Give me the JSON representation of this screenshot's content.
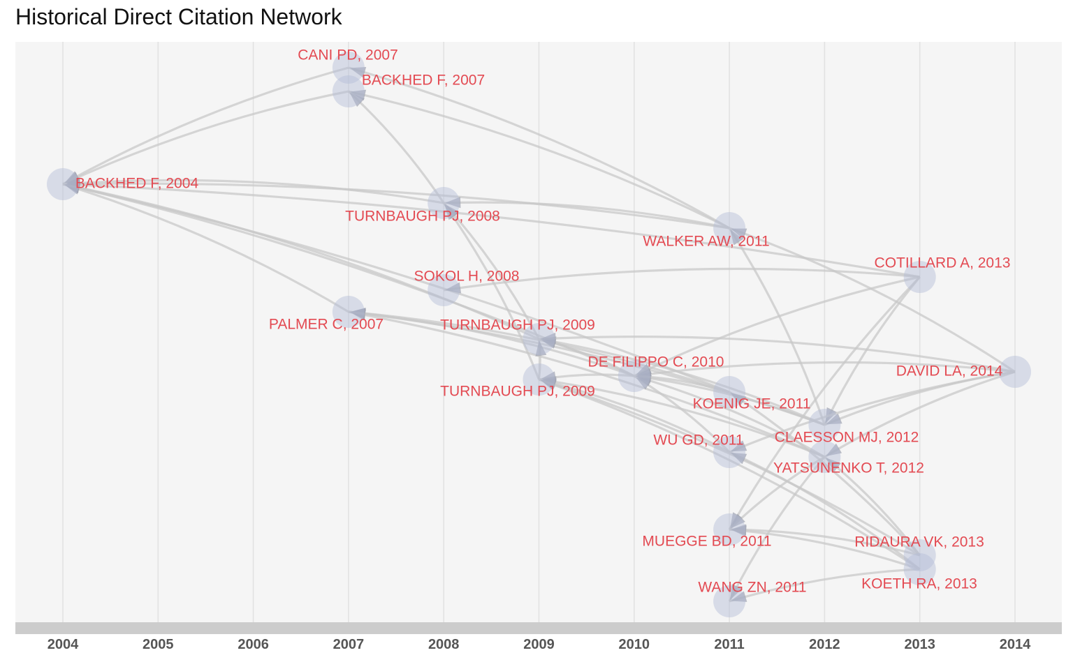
{
  "chart_data": {
    "type": "network",
    "title": "Historical Direct Citation Network",
    "xlabel": "",
    "ylabel": "",
    "x_ticks": [
      2004,
      2005,
      2006,
      2007,
      2008,
      2009,
      2010,
      2011,
      2012,
      2013,
      2014
    ],
    "xlim": [
      2004,
      2014
    ],
    "colors": {
      "background": "#f5f5f5",
      "grid": "#e2e2e2",
      "axis_band": "#cccccc",
      "node_fill": "#b3bcd8",
      "edge": "#c8c8c8",
      "arrow": "#9ea3b0",
      "label": "#e34a52",
      "tick_label": "#555555"
    },
    "nodes": [
      {
        "id": "cani2007",
        "label": "CANI PD, 2007",
        "year": 2007
      },
      {
        "id": "backhed2007",
        "label": "BACKHED F, 2007",
        "year": 2007
      },
      {
        "id": "backhed2004",
        "label": "BACKHED F, 2004",
        "year": 2004
      },
      {
        "id": "turnbaugh2008",
        "label": "TURNBAUGH PJ, 2008",
        "year": 2008
      },
      {
        "id": "walker2011",
        "label": "WALKER AW, 2011",
        "year": 2011
      },
      {
        "id": "cotillard2013",
        "label": "COTILLARD A, 2013",
        "year": 2013
      },
      {
        "id": "sokol2008",
        "label": "SOKOL H, 2008",
        "year": 2008
      },
      {
        "id": "palmer2007",
        "label": "PALMER C, 2007",
        "year": 2007
      },
      {
        "id": "turnbaugh2009a",
        "label": "TURNBAUGH PJ, 2009",
        "year": 2009
      },
      {
        "id": "defilippo2010",
        "label": "DE FILIPPO C, 2010",
        "year": 2010
      },
      {
        "id": "davidla2014",
        "label": "DAVID LA, 2014",
        "year": 2014
      },
      {
        "id": "turnbaugh2009b",
        "label": "TURNBAUGH PJ, 2009",
        "year": 2009
      },
      {
        "id": "koenig2011",
        "label": "KOENIG JE, 2011",
        "year": 2011
      },
      {
        "id": "claesson2012",
        "label": "CLAESSON MJ, 2012",
        "year": 2012
      },
      {
        "id": "wugd2011",
        "label": "WU GD, 2011",
        "year": 2011
      },
      {
        "id": "yatsunenko2012",
        "label": "YATSUNENKO T, 2012",
        "year": 2012
      },
      {
        "id": "muegge2011",
        "label": "MUEGGE BD, 2011",
        "year": 2011
      },
      {
        "id": "ridaura2013",
        "label": "RIDAURA VK, 2013",
        "year": 2013
      },
      {
        "id": "koeth2013",
        "label": "KOETH RA, 2013",
        "year": 2013
      },
      {
        "id": "wangzn2011",
        "label": "WANG ZN, 2011",
        "year": 2011
      }
    ],
    "edges": [
      {
        "from": "backhed2007",
        "to": "backhed2004"
      },
      {
        "from": "cani2007",
        "to": "backhed2004"
      },
      {
        "from": "turnbaugh2008",
        "to": "backhed2004"
      },
      {
        "from": "walker2011",
        "to": "backhed2004"
      },
      {
        "from": "cotillard2013",
        "to": "backhed2004"
      },
      {
        "from": "palmer2007",
        "to": "backhed2004"
      },
      {
        "from": "turnbaugh2009a",
        "to": "backhed2004"
      },
      {
        "from": "defilippo2010",
        "to": "backhed2004"
      },
      {
        "from": "koenig2011",
        "to": "backhed2004"
      },
      {
        "from": "walker2011",
        "to": "cani2007"
      },
      {
        "from": "walker2011",
        "to": "backhed2007"
      },
      {
        "from": "turnbaugh2008",
        "to": "backhed2007"
      },
      {
        "from": "davidla2014",
        "to": "walker2011"
      },
      {
        "from": "walker2011",
        "to": "turnbaugh2008"
      },
      {
        "from": "turnbaugh2009a",
        "to": "turnbaugh2008"
      },
      {
        "from": "turnbaugh2009b",
        "to": "turnbaugh2008"
      },
      {
        "from": "cotillard2013",
        "to": "sokol2008"
      },
      {
        "from": "defilippo2010",
        "to": "palmer2007"
      },
      {
        "from": "koenig2011",
        "to": "palmer2007"
      },
      {
        "from": "yatsunenko2012",
        "to": "palmer2007"
      },
      {
        "from": "claesson2012",
        "to": "palmer2007"
      },
      {
        "from": "turnbaugh2009b",
        "to": "turnbaugh2009a"
      },
      {
        "from": "defilippo2010",
        "to": "turnbaugh2009a"
      },
      {
        "from": "claesson2012",
        "to": "turnbaugh2009a"
      },
      {
        "from": "davidla2014",
        "to": "turnbaugh2009a"
      },
      {
        "from": "defilippo2010",
        "to": "turnbaugh2009b"
      },
      {
        "from": "wugd2011",
        "to": "turnbaugh2009b"
      },
      {
        "from": "yatsunenko2012",
        "to": "turnbaugh2009b"
      },
      {
        "from": "ridaura2013",
        "to": "turnbaugh2009b"
      },
      {
        "from": "cotillard2013",
        "to": "defilippo2010"
      },
      {
        "from": "davidla2014",
        "to": "defilippo2010"
      },
      {
        "from": "wugd2011",
        "to": "defilippo2010"
      },
      {
        "from": "yatsunenko2012",
        "to": "defilippo2010"
      },
      {
        "from": "claesson2012",
        "to": "defilippo2010"
      },
      {
        "from": "koenig2011",
        "to": "defilippo2010"
      },
      {
        "from": "claesson2012",
        "to": "walker2011"
      },
      {
        "from": "cotillard2013",
        "to": "claesson2012"
      },
      {
        "from": "davidla2014",
        "to": "claesson2012"
      },
      {
        "from": "cotillard2013",
        "to": "muegge2011"
      },
      {
        "from": "davidla2014",
        "to": "yatsunenko2012"
      },
      {
        "from": "davidla2014",
        "to": "wugd2011"
      },
      {
        "from": "yatsunenko2012",
        "to": "wangzn2011"
      },
      {
        "from": "yatsunenko2012",
        "to": "muegge2011"
      },
      {
        "from": "ridaura2013",
        "to": "yatsunenko2012"
      },
      {
        "from": "ridaura2013",
        "to": "muegge2011"
      },
      {
        "from": "koeth2013",
        "to": "wugd2011"
      },
      {
        "from": "koeth2013",
        "to": "muegge2011"
      },
      {
        "from": "koeth2013",
        "to": "wangzn2011"
      },
      {
        "from": "koeth2013",
        "to": "turnbaugh2009b"
      },
      {
        "from": "ridaura2013",
        "to": "koenig2011"
      }
    ]
  }
}
